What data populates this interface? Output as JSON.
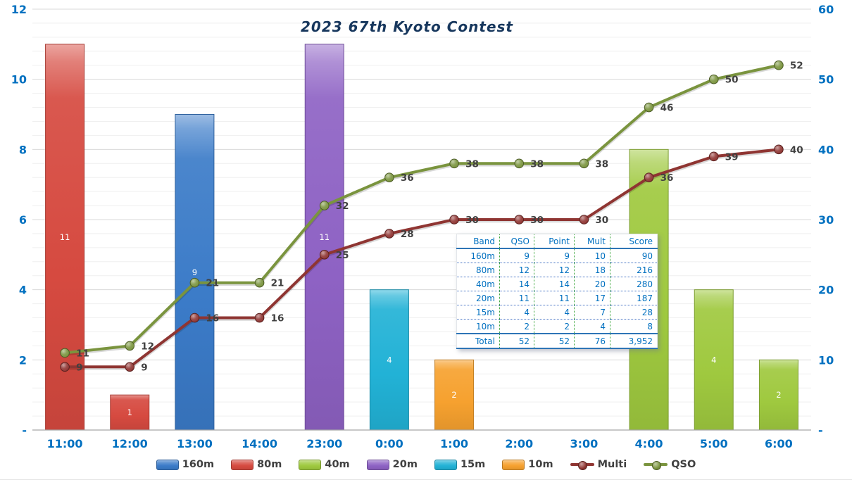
{
  "title": "2023 67th Kyoto Contest",
  "colors": {
    "title_text": "#17375d",
    "axis_text": "#0070c0",
    "grid_major": "#d9d9d9",
    "grid_minor": "#efefef",
    "axis_line": "#a6a6a6",
    "data_label_text": "#404040",
    "bar_value_text": "#ffffff",
    "legend_text": "#404040",
    "table_text": "#0070c0"
  },
  "chart_data": {
    "type": "combo-bar-line",
    "categories": [
      "11:00",
      "12:00",
      "13:00",
      "14:00",
      "23:00",
      "0:00",
      "1:00",
      "2:00",
      "3:00",
      "4:00",
      "5:00",
      "6:00"
    ],
    "bar_series": [
      {
        "name": "160m",
        "color": "#3b7bc8",
        "values": [
          null,
          null,
          9,
          null,
          null,
          null,
          null,
          null,
          null,
          null,
          null,
          null
        ]
      },
      {
        "name": "80m",
        "color": "#d64a40",
        "values": [
          11,
          1,
          null,
          null,
          null,
          null,
          null,
          null,
          null,
          null,
          null,
          null
        ]
      },
      {
        "name": "40m",
        "color": "#9fc93f",
        "values": [
          null,
          null,
          null,
          null,
          null,
          null,
          null,
          null,
          null,
          8,
          4,
          2
        ]
      },
      {
        "name": "20m",
        "color": "#8e62c4",
        "values": [
          null,
          null,
          null,
          null,
          11,
          null,
          null,
          null,
          null,
          null,
          null,
          null
        ]
      },
      {
        "name": "15m",
        "color": "#22b2d6",
        "values": [
          null,
          null,
          null,
          null,
          null,
          4,
          null,
          null,
          null,
          null,
          null,
          null
        ]
      },
      {
        "name": "10m",
        "color": "#f6a12f",
        "values": [
          null,
          null,
          null,
          null,
          null,
          null,
          2,
          null,
          null,
          null,
          null,
          null
        ]
      }
    ],
    "line_series": [
      {
        "name": "Multi",
        "color": "#8f3532",
        "axis": "right",
        "values": [
          9,
          9,
          16,
          16,
          25,
          28,
          30,
          30,
          30,
          36,
          39,
          40
        ]
      },
      {
        "name": "QSO",
        "color": "#7a943e",
        "axis": "right",
        "values": [
          11,
          12,
          21,
          21,
          32,
          36,
          38,
          38,
          38,
          46,
          50,
          52
        ]
      }
    ],
    "left_axis": {
      "max": 12,
      "major": 2,
      "minor": 0.4,
      "tick_labels": [
        "12",
        "10",
        "8",
        "6",
        "4",
        "2",
        "-"
      ],
      "tick_values": [
        12,
        10,
        8,
        6,
        4,
        2,
        0
      ]
    },
    "right_axis": {
      "max": 60,
      "tick_labels": [
        "60",
        "50",
        "40",
        "30",
        "20",
        "10",
        "-"
      ],
      "tick_values": [
        60,
        50,
        40,
        30,
        20,
        10,
        0
      ]
    },
    "grid": "horizontal-major-and-minor",
    "legend_position": "bottom"
  },
  "score_table": {
    "headers": [
      "Band",
      "QSO",
      "Point",
      "Mult",
      "Score"
    ],
    "rows": [
      [
        "160m",
        "9",
        "9",
        "10",
        "90"
      ],
      [
        "80m",
        "12",
        "12",
        "18",
        "216"
      ],
      [
        "40m",
        "14",
        "14",
        "20",
        "280"
      ],
      [
        "20m",
        "11",
        "11",
        "17",
        "187"
      ],
      [
        "15m",
        "4",
        "4",
        "7",
        "28"
      ],
      [
        "10m",
        "2",
        "2",
        "4",
        "8"
      ],
      [
        "Total",
        "52",
        "52",
        "76",
        "3,952"
      ]
    ]
  },
  "legend": {
    "items": [
      {
        "label": "160m",
        "type": "bar",
        "color": "#3b7bc8"
      },
      {
        "label": "80m",
        "type": "bar",
        "color": "#d64a40"
      },
      {
        "label": "40m",
        "type": "bar",
        "color": "#9fc93f"
      },
      {
        "label": "20m",
        "type": "bar",
        "color": "#8e62c4"
      },
      {
        "label": "15m",
        "type": "bar",
        "color": "#22b2d6"
      },
      {
        "label": "10m",
        "type": "bar",
        "color": "#f6a12f"
      },
      {
        "label": "Multi",
        "type": "line",
        "color": "#8f3532"
      },
      {
        "label": "QSO",
        "type": "line",
        "color": "#7a943e"
      }
    ]
  }
}
